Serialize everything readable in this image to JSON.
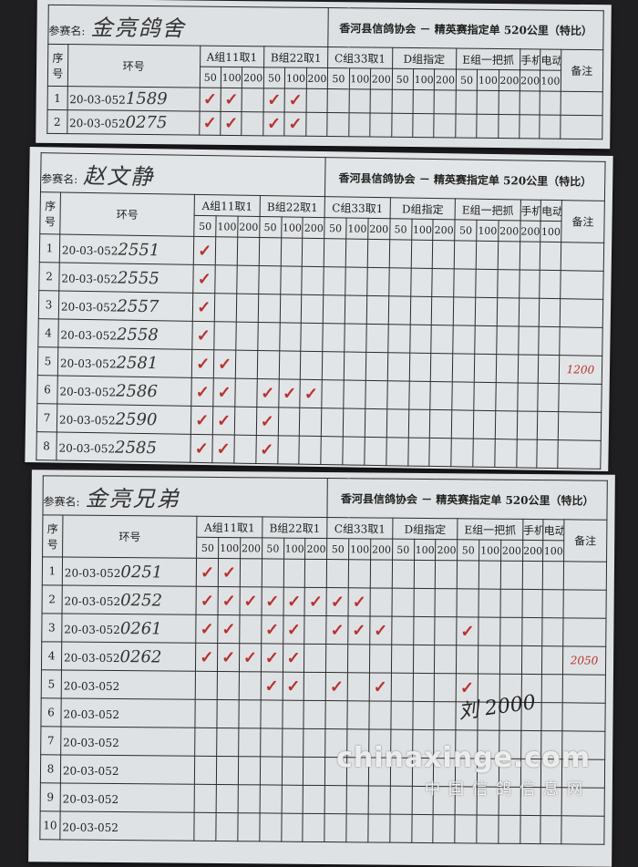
{
  "form": {
    "name_label": "参赛名:",
    "title": "香河县信鸽协会 － 精英赛指定单 520公里（特比）",
    "seq_header": "序号",
    "ring_header": "环号",
    "groups": [
      "A组11取1",
      "B组22取1",
      "C组33取1",
      "D组指定",
      "E组一把抓"
    ],
    "sub_distances": [
      "50",
      "100",
      "200"
    ],
    "phone_label": "手机",
    "phone_distance": "200",
    "electric_label": "电动",
    "electric_distance": "100",
    "remark_header": "备注",
    "check_mark": "✓"
  },
  "sheets": [
    {
      "entrant_name": "金亮鸽舍",
      "rows": [
        {
          "seq": "1",
          "ring_prefix": "20-03-052",
          "ring_hand": "1589",
          "checks": [
            0,
            1,
            3,
            4
          ],
          "remark": ""
        },
        {
          "seq": "2",
          "ring_prefix": "20-03-052",
          "ring_hand": "0275",
          "checks": [
            0,
            1,
            3,
            4
          ],
          "remark": ""
        }
      ]
    },
    {
      "entrant_name": "赵文静",
      "rows": [
        {
          "seq": "1",
          "ring_prefix": "20-03-052",
          "ring_hand": "2551",
          "checks": [
            0
          ],
          "remark": ""
        },
        {
          "seq": "2",
          "ring_prefix": "20-03-052",
          "ring_hand": "2555",
          "checks": [
            0
          ],
          "remark": ""
        },
        {
          "seq": "3",
          "ring_prefix": "20-03-052",
          "ring_hand": "2557",
          "checks": [
            0
          ],
          "remark": ""
        },
        {
          "seq": "4",
          "ring_prefix": "20-03-052",
          "ring_hand": "2558",
          "checks": [
            0
          ],
          "remark": ""
        },
        {
          "seq": "5",
          "ring_prefix": "20-03-052",
          "ring_hand": "2581",
          "checks": [
            0,
            1
          ],
          "remark": "1200"
        },
        {
          "seq": "6",
          "ring_prefix": "20-03-052",
          "ring_hand": "2586",
          "checks": [
            0,
            1,
            3,
            4,
            5
          ],
          "remark": ""
        },
        {
          "seq": "7",
          "ring_prefix": "20-03-052",
          "ring_hand": "2590",
          "checks": [
            0,
            1,
            3
          ],
          "remark": ""
        },
        {
          "seq": "8",
          "ring_prefix": "20-03-052",
          "ring_hand": "2585",
          "checks": [
            0,
            1,
            3
          ],
          "remark": ""
        }
      ]
    },
    {
      "entrant_name": "金亮兄弟",
      "signature": "刘 2000",
      "rows": [
        {
          "seq": "1",
          "ring_prefix": "20-03-052",
          "ring_hand": "0251",
          "checks": [
            0,
            1
          ],
          "remark": ""
        },
        {
          "seq": "2",
          "ring_prefix": "20-03-052",
          "ring_hand": "0252",
          "checks": [
            0,
            1,
            2,
            3,
            4,
            5,
            6,
            7
          ],
          "remark": ""
        },
        {
          "seq": "3",
          "ring_prefix": "20-03-052",
          "ring_hand": "0261",
          "checks": [
            0,
            1,
            3,
            4,
            6,
            7,
            8,
            12
          ],
          "remark": ""
        },
        {
          "seq": "4",
          "ring_prefix": "20-03-052",
          "ring_hand": "0262",
          "checks": [
            0,
            1,
            2,
            3,
            4
          ],
          "remark": "2050"
        },
        {
          "seq": "5",
          "ring_prefix": "20-03-052",
          "ring_hand": "",
          "checks": [
            3,
            4,
            6,
            8,
            12
          ],
          "remark": ""
        },
        {
          "seq": "6",
          "ring_prefix": "20-03-052",
          "ring_hand": "",
          "checks": [],
          "remark": ""
        },
        {
          "seq": "7",
          "ring_prefix": "20-03-052",
          "ring_hand": "",
          "checks": [],
          "remark": ""
        },
        {
          "seq": "8",
          "ring_prefix": "20-03-052",
          "ring_hand": "",
          "checks": [],
          "remark": ""
        },
        {
          "seq": "9",
          "ring_prefix": "20-03-052",
          "ring_hand": "",
          "checks": [],
          "remark": ""
        },
        {
          "seq": "10",
          "ring_prefix": "20-03-052",
          "ring_hand": "",
          "checks": [],
          "remark": ""
        }
      ]
    }
  ],
  "watermark": {
    "domain": "chinaxinge.com",
    "site_name": "中国信鸽信息网"
  },
  "colors": {
    "ink_red": "#b8322e",
    "paper": "#dde1e3",
    "background": "#1f1f22"
  }
}
